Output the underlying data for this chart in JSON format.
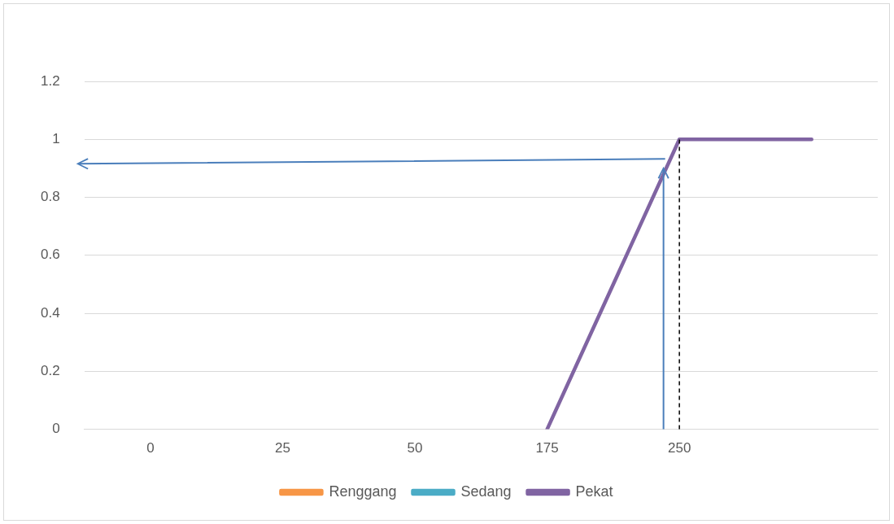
{
  "chart_data": {
    "type": "line",
    "categories": [
      "0",
      "25",
      "50",
      "175",
      "250",
      null
    ],
    "series": [
      {
        "name": "Renggang",
        "color": "#f79646",
        "values": [
          null,
          null,
          null,
          null,
          null,
          null
        ]
      },
      {
        "name": "Sedang",
        "color": "#4bacc6",
        "values": [
          null,
          null,
          null,
          null,
          null,
          null
        ]
      },
      {
        "name": "Pekat",
        "color": "#8064a2",
        "values": [
          null,
          null,
          null,
          0,
          1,
          1
        ]
      }
    ],
    "ylim": [
      0,
      1.2
    ],
    "yticks": [
      0,
      0.2,
      0.4,
      0.6,
      0.8,
      1,
      1.2
    ],
    "grid": "y",
    "legend": "bottom",
    "marker": "none",
    "line_style": "solid",
    "ref_lines": [
      {
        "axis": "x",
        "value": "250",
        "color": "#000000",
        "line_style": "dashed"
      }
    ]
  }
}
